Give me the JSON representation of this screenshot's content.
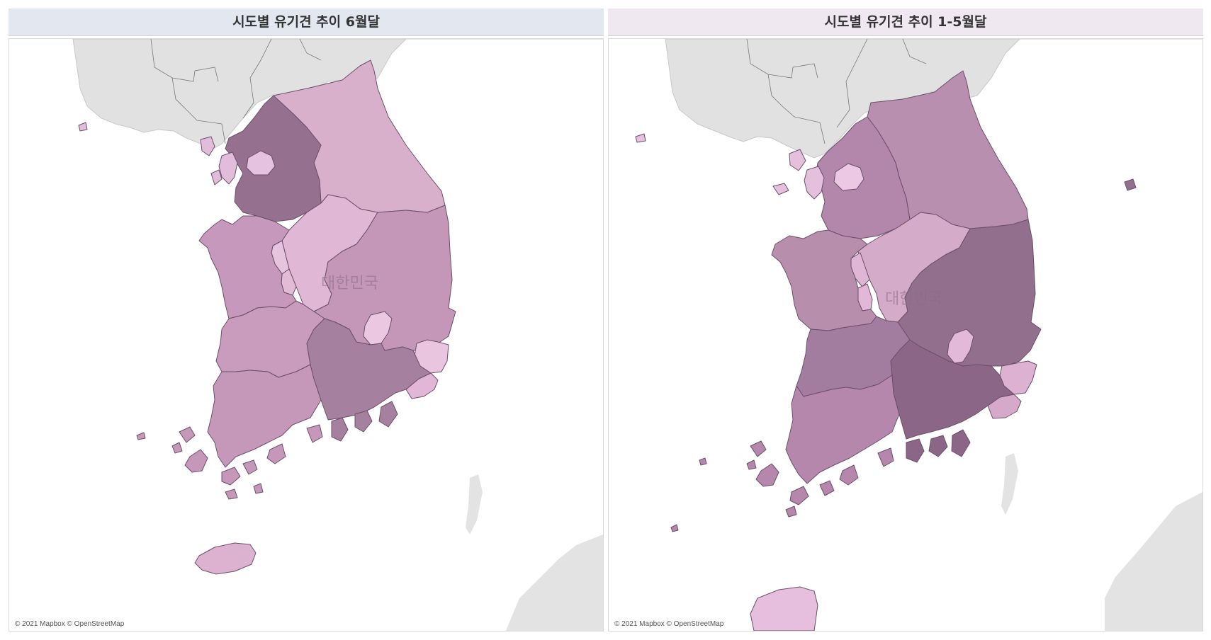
{
  "panels": [
    {
      "title": "시도별 유기견 추이 6월달",
      "country_label": "대한민국",
      "attribution": "© 2021 Mapbox © OpenStreetMap",
      "colors": {
        "gyeonggi": "#96708f",
        "seoul": "#e5c2df",
        "incheon": "#e2bcdb",
        "gangwon": "#d8b0cb",
        "chungbuk": "#e0b7d4",
        "sejong": "#e7c4dd",
        "daejeon": "#e2bbd6",
        "chungnam": "#c698bb",
        "gyeongbuk": "#c497b8",
        "daegu": "#ecc7e2",
        "ulsan": "#eac5e0",
        "busan": "#e1b6d6",
        "jeonbuk": "#c99bbd",
        "gwangju": "#ecc8e3",
        "jeonnam": "#c597b9",
        "gyeongnam": "#a6809f",
        "jeju": "#ddb2d1"
      }
    },
    {
      "title": "시도별 유기견 추이 1-5월달",
      "country_label": "대한민국",
      "attribution": "© 2021 Mapbox © OpenStreetMap",
      "colors": {
        "gyeonggi": "#b287ab",
        "seoul": "#ecc8e4",
        "incheon": "#e5c0dd",
        "gangwon": "#b98faf",
        "chungbuk": "#d4abc9",
        "sejong": "#e0b6d6",
        "daejeon": "#e2b8d8",
        "chungnam": "#b88ead",
        "gyeongbuk": "#936f8e",
        "daegu": "#e3b9da",
        "ulsan": "#ddb1d1",
        "busan": "#d6a9cb",
        "jeonbuk": "#a37d9f",
        "gwangju": "#e2b7d7",
        "jeonnam": "#b587ad",
        "gyeongnam": "#8c6686",
        "jeju": "#e7bfde"
      }
    }
  ]
}
